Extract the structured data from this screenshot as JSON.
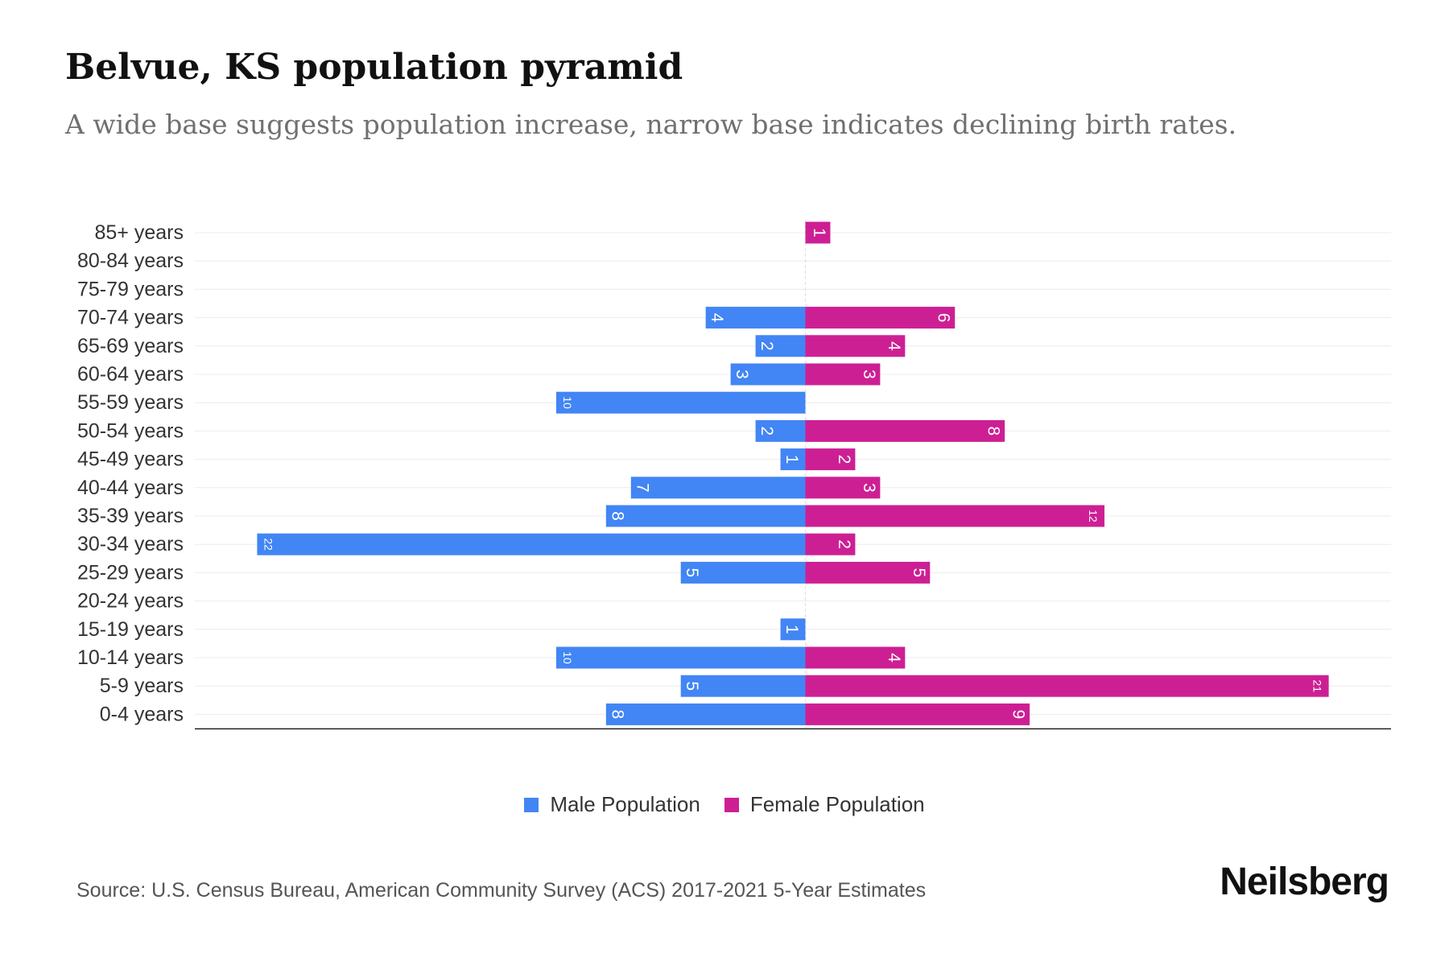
{
  "title": "Belvue, KS population pyramid",
  "subtitle": "A wide base suggests population increase, narrow base indicates declining birth rates.",
  "source": "Source: U.S. Census Bureau, American Community Survey (ACS) 2017-2021 5-Year Estimates",
  "brand": "Neilsberg",
  "colors": {
    "male": "#4285F4",
    "female": "#CD1F94"
  },
  "chart_data": {
    "type": "bar",
    "orientation": "horizontal",
    "title": "Belvue, KS population pyramid",
    "subtitle": "A wide base suggests population increase, narrow base indicates declining birth rates.",
    "categories": [
      "85+ years",
      "80-84 years",
      "75-79 years",
      "70-74 years",
      "65-69 years",
      "60-64 years",
      "55-59 years",
      "50-54 years",
      "45-49 years",
      "40-44 years",
      "35-39 years",
      "30-34 years",
      "25-29 years",
      "20-24 years",
      "15-19 years",
      "10-14 years",
      "5-9 years",
      "0-4 years"
    ],
    "series": [
      {
        "name": "Male Population",
        "values": [
          0,
          0,
          0,
          4,
          2,
          3,
          10,
          2,
          1,
          7,
          8,
          22,
          5,
          0,
          1,
          10,
          5,
          8
        ]
      },
      {
        "name": "Female Population",
        "values": [
          1,
          0,
          0,
          6,
          4,
          3,
          0,
          8,
          2,
          3,
          12,
          2,
          5,
          0,
          0,
          4,
          21,
          9
        ]
      }
    ],
    "xlim": [
      -24.5,
      23.5
    ],
    "grid": true,
    "legend_position": "bottom-center"
  }
}
